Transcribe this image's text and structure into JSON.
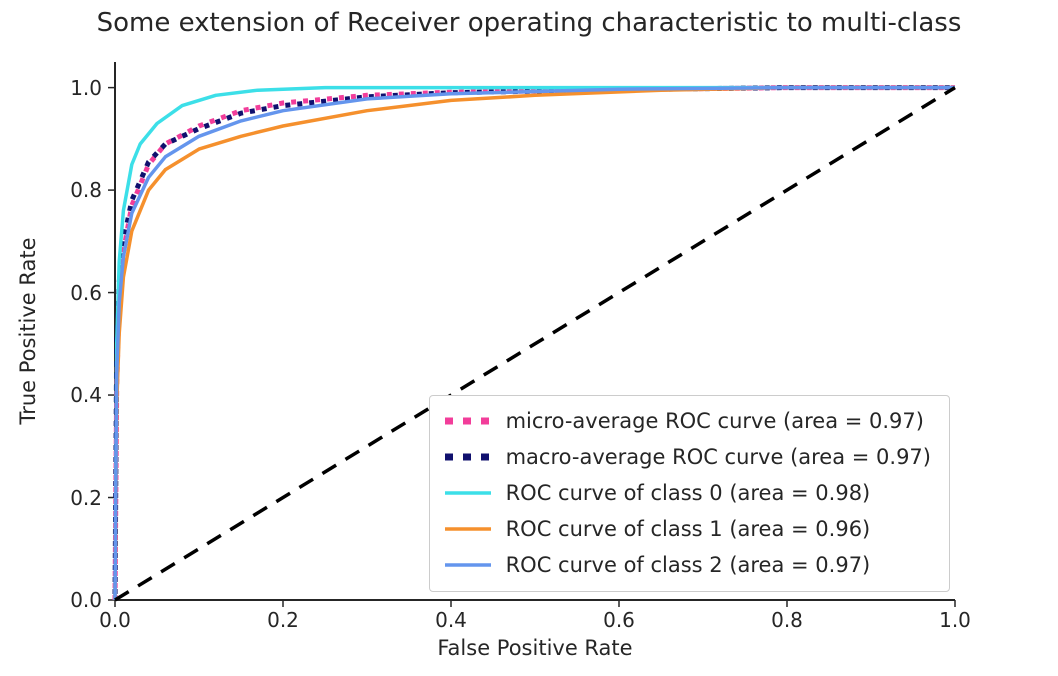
{
  "chart_data": {
    "type": "line",
    "title": "Some extension of Receiver operating characteristic to multi-class",
    "xlabel": "False Positive Rate",
    "ylabel": "True Positive Rate",
    "xlim": [
      0.0,
      1.0
    ],
    "ylim": [
      0.0,
      1.05
    ],
    "xticks": [
      0.0,
      0.2,
      0.4,
      0.6,
      0.8,
      1.0
    ],
    "yticks": [
      0.0,
      0.2,
      0.4,
      0.6,
      0.8,
      1.0
    ],
    "grid": false,
    "legend_position": "lower right",
    "axis_color": "#262626",
    "series": [
      {
        "id": "micro-average",
        "name": "micro-average ROC curve (area = 0.97)",
        "area": 0.97,
        "color": "#f23d9a",
        "style": "dotted",
        "width": 5,
        "in_legend": true,
        "x": [
          0,
          0.002,
          0.005,
          0.01,
          0.02,
          0.04,
          0.06,
          0.1,
          0.15,
          0.2,
          0.3,
          0.4,
          0.6,
          0.8,
          1.0
        ],
        "y": [
          0,
          0.42,
          0.58,
          0.68,
          0.77,
          0.85,
          0.89,
          0.925,
          0.955,
          0.97,
          0.985,
          0.991,
          0.996,
          1.0,
          1.0
        ]
      },
      {
        "id": "macro-average",
        "name": "macro-average ROC curve (area = 0.97)",
        "area": 0.97,
        "color": "#10106e",
        "style": "dotted",
        "width": 5,
        "dash_offset": 6,
        "in_legend": true,
        "x": [
          0,
          0.002,
          0.005,
          0.01,
          0.02,
          0.04,
          0.06,
          0.1,
          0.15,
          0.2,
          0.3,
          0.4,
          0.6,
          0.8,
          1.0
        ],
        "y": [
          0,
          0.5,
          0.62,
          0.7,
          0.78,
          0.855,
          0.89,
          0.92,
          0.95,
          0.965,
          0.982,
          0.99,
          0.996,
          1.0,
          1.0
        ]
      },
      {
        "id": "class-0",
        "name": "ROC curve of class 0 (area = 0.98)",
        "area": 0.98,
        "color": "#3cdfe8",
        "style": "solid",
        "width": 3.5,
        "in_legend": true,
        "x": [
          0,
          0.002,
          0.005,
          0.01,
          0.02,
          0.03,
          0.05,
          0.08,
          0.12,
          0.17,
          0.25,
          0.35,
          0.5,
          0.75,
          1.0
        ],
        "y": [
          0,
          0.5,
          0.66,
          0.76,
          0.85,
          0.89,
          0.93,
          0.965,
          0.985,
          0.995,
          1.0,
          1.0,
          1.0,
          1.0,
          1.0
        ]
      },
      {
        "id": "class-1",
        "name": "ROC curve of class 1 (area = 0.96)",
        "area": 0.96,
        "color": "#f5902d",
        "style": "solid",
        "width": 3.5,
        "in_legend": true,
        "x": [
          0,
          0.002,
          0.005,
          0.01,
          0.02,
          0.04,
          0.06,
          0.1,
          0.15,
          0.2,
          0.3,
          0.4,
          0.5,
          0.65,
          0.8,
          1.0
        ],
        "y": [
          0,
          0.38,
          0.52,
          0.63,
          0.72,
          0.8,
          0.84,
          0.88,
          0.905,
          0.925,
          0.955,
          0.975,
          0.985,
          0.995,
          1.0,
          1.0
        ]
      },
      {
        "id": "class-2",
        "name": "ROC curve of class 2 (area = 0.97)",
        "area": 0.97,
        "color": "#6495ed",
        "style": "solid",
        "width": 3.5,
        "in_legend": true,
        "x": [
          0,
          0.002,
          0.005,
          0.01,
          0.02,
          0.04,
          0.06,
          0.1,
          0.15,
          0.2,
          0.3,
          0.4,
          0.6,
          0.8,
          1.0
        ],
        "y": [
          0,
          0.44,
          0.58,
          0.67,
          0.755,
          0.825,
          0.865,
          0.905,
          0.935,
          0.955,
          0.978,
          0.988,
          0.997,
          1.0,
          1.0
        ]
      },
      {
        "id": "chance",
        "color": "#000000",
        "style": "dashed",
        "width": 3.5,
        "in_legend": false,
        "x": [
          0,
          1.0
        ],
        "y": [
          0,
          1.0
        ]
      }
    ]
  }
}
